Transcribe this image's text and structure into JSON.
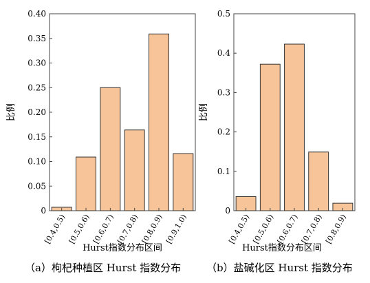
{
  "chart_data": [
    {
      "type": "bar",
      "categories": [
        "[0.4,0.5)",
        "[0.5,0.6)",
        "[0.6,0.7)",
        "[0.7,0.8)",
        "[0.8,0.9)",
        "[0.9,1.0)"
      ],
      "values": [
        0.007,
        0.109,
        0.25,
        0.164,
        0.359,
        0.116
      ],
      "xlabel": "Hurst指数分布区间",
      "ylabel": "比例",
      "ylim": [
        0,
        0.4
      ],
      "yticks": [
        "0",
        "0.05",
        "0.10",
        "0.15",
        "0.20",
        "0.25",
        "0.30",
        "0.35",
        "0.40"
      ],
      "caption": "（a）枸杞种植区 Hurst 指数分布",
      "bar_color": "#f7c49a",
      "edge_color": "#333333"
    },
    {
      "type": "bar",
      "categories": [
        "[0.4,0.5)",
        "[0.5,0.6)",
        "[0.6,0.7)",
        "[0.7,0.8)",
        "[0.8,0.9)"
      ],
      "values": [
        0.036,
        0.372,
        0.423,
        0.149,
        0.019
      ],
      "xlabel": "Hurst指数分布区间",
      "ylabel": "比例",
      "ylim": [
        0,
        0.5
      ],
      "yticks": [
        "0",
        "0.1",
        "0.2",
        "0.3",
        "0.4",
        "0.5"
      ],
      "caption": "（b）盐碱化区 Hurst 指数分布",
      "bar_color": "#f7c49a",
      "edge_color": "#333333"
    }
  ]
}
